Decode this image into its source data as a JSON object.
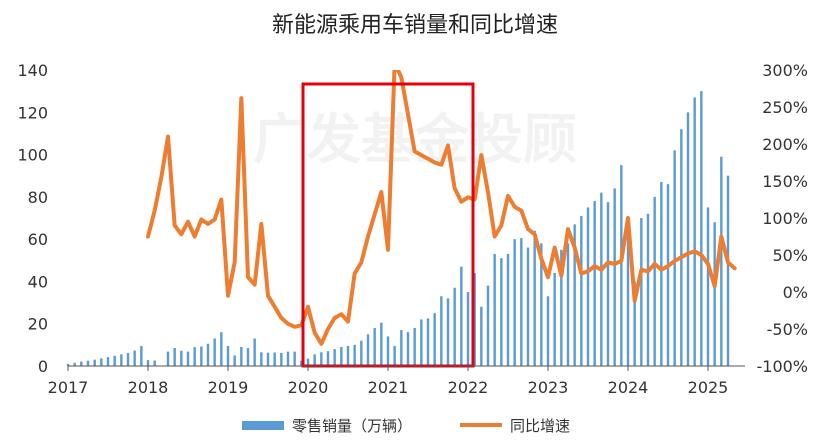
{
  "chart_data": {
    "type": "bar+line",
    "title": "新能源乘用车销量和同比增速",
    "watermark": "广发基金投顾",
    "x_axis": {
      "labels": [
        "2017",
        "2018",
        "2019",
        "2020",
        "2021",
        "2022",
        "2023",
        "2024",
        "2025"
      ]
    },
    "y_left": {
      "ticks": [
        "0",
        "20",
        "40",
        "60",
        "80",
        "100",
        "120",
        "140"
      ],
      "min": 0,
      "max": 140
    },
    "y_right": {
      "ticks": [
        "-100%",
        "-50%",
        "0%",
        "50%",
        "100%",
        "150%",
        "200%",
        "250%",
        "300%"
      ],
      "min": -100,
      "max": 300
    },
    "series": [
      {
        "name": "零售销量（万辆）",
        "type": "bar",
        "axis": "left",
        "color": "#5b9bd5",
        "start": "2017-01",
        "values": [
          1.0,
          1.5,
          2.1,
          2.5,
          3.0,
          3.6,
          4.2,
          4.8,
          5.5,
          6.1,
          7.3,
          9.5,
          2.8,
          2.6,
          null,
          6.8,
          8.5,
          7.2,
          6.8,
          8.9,
          9.2,
          10.5,
          13.0,
          16.0,
          9.5,
          5.0,
          9.0,
          8.5,
          13.0,
          6.5,
          6.3,
          6.4,
          6.2,
          6.8,
          6.8,
          2.5,
          3.5,
          5.5,
          6.5,
          7.0,
          8.0,
          9.0,
          9.5,
          10.0,
          12.0,
          15.0,
          18.0,
          20.5,
          14.0,
          9.5,
          17.0,
          16.0,
          18.0,
          22.0,
          22.5,
          25.0,
          33.0,
          32.0,
          37.0,
          47.0,
          35.0,
          44.0,
          28.0,
          38.0,
          53.0,
          51.0,
          53.0,
          60.0,
          60.5,
          56.0,
          64.0,
          58.0,
          33.0,
          44.0,
          55.0,
          58.0,
          67.0,
          71.0,
          75.0,
          78.0,
          82.0,
          77.5,
          84.0,
          95.0,
          66.0,
          40.0,
          70.0,
          72.0,
          80.0,
          87.0,
          86.0,
          102.0,
          112.0,
          120.0,
          127.0,
          130.0,
          75.0,
          68.0,
          99.0,
          90.0
        ]
      },
      {
        "name": "同比增速",
        "type": "line",
        "axis": "right",
        "color": "#ed7d31",
        "points": [
          [
            "2018-01",
            75
          ],
          [
            "2018-02",
            110
          ],
          [
            "2018-03",
            155
          ],
          [
            "2018-04",
            210
          ],
          [
            "2018-05",
            90
          ],
          [
            "2018-06",
            78
          ],
          [
            "2018-07",
            95
          ],
          [
            "2018-08",
            75
          ],
          [
            "2018-09",
            98
          ],
          [
            "2018-10",
            92
          ],
          [
            "2018-11",
            98
          ],
          [
            "2018-12",
            125
          ],
          [
            "2019-01",
            -5
          ],
          [
            "2019-02",
            40
          ],
          [
            "2019-03",
            262
          ],
          [
            "2019-04",
            20
          ],
          [
            "2019-05",
            10
          ],
          [
            "2019-06",
            92
          ],
          [
            "2019-07",
            -5
          ],
          [
            "2019-08",
            -20
          ],
          [
            "2019-09",
            -35
          ],
          [
            "2019-10",
            -43
          ],
          [
            "2019-11",
            -47
          ],
          [
            "2019-12",
            -45
          ],
          [
            "2020-01",
            -20
          ],
          [
            "2020-02",
            -55
          ],
          [
            "2020-03",
            -70
          ],
          [
            "2020-04",
            -50
          ],
          [
            "2020-05",
            -35
          ],
          [
            "2020-06",
            -30
          ],
          [
            "2020-07",
            -40
          ],
          [
            "2020-08",
            25
          ],
          [
            "2020-09",
            40
          ],
          [
            "2020-10",
            75
          ],
          [
            "2020-11",
            105
          ],
          [
            "2020-12",
            135
          ],
          [
            "2021-01",
            57
          ],
          [
            "2021-02",
            310
          ],
          [
            "2021-03",
            290
          ],
          [
            "2021-04",
            240
          ],
          [
            "2021-05",
            190
          ],
          [
            "2021-06",
            185
          ],
          [
            "2021-07",
            180
          ],
          [
            "2021-08",
            175
          ],
          [
            "2021-09",
            172
          ],
          [
            "2021-10",
            198
          ],
          [
            "2021-11",
            140
          ],
          [
            "2021-12",
            122
          ],
          [
            "2022-01",
            128
          ],
          [
            "2022-02",
            125
          ],
          [
            "2022-03",
            185
          ],
          [
            "2022-04",
            135
          ],
          [
            "2022-05",
            75
          ],
          [
            "2022-06",
            90
          ],
          [
            "2022-07",
            130
          ],
          [
            "2022-08",
            115
          ],
          [
            "2022-09",
            110
          ],
          [
            "2022-10",
            85
          ],
          [
            "2022-11",
            78
          ],
          [
            "2022-12",
            45
          ],
          [
            "2023-01",
            20
          ],
          [
            "2023-02",
            60
          ],
          [
            "2023-03",
            22
          ],
          [
            "2023-04",
            85
          ],
          [
            "2023-05",
            60
          ],
          [
            "2023-06",
            25
          ],
          [
            "2023-07",
            28
          ],
          [
            "2023-08",
            35
          ],
          [
            "2023-09",
            30
          ],
          [
            "2023-10",
            40
          ],
          [
            "2023-11",
            38
          ],
          [
            "2023-12",
            42
          ],
          [
            "2024-01",
            100
          ],
          [
            "2024-02",
            -12
          ],
          [
            "2024-03",
            30
          ],
          [
            "2024-04",
            28
          ],
          [
            "2024-05",
            38
          ],
          [
            "2024-06",
            30
          ],
          [
            "2024-07",
            35
          ],
          [
            "2024-08",
            42
          ],
          [
            "2024-09",
            47
          ],
          [
            "2024-10",
            52
          ],
          [
            "2024-11",
            55
          ],
          [
            "2024-12",
            50
          ],
          [
            "2025-01",
            38
          ],
          [
            "2025-02",
            8
          ],
          [
            "2025-03",
            75
          ],
          [
            "2025-04",
            40
          ],
          [
            "2025-05",
            32
          ]
        ]
      }
    ],
    "highlight_box": {
      "from": "2020-01",
      "to": "2022-01",
      "color": "#e3000f"
    },
    "legend": {
      "position": "bottom",
      "items": [
        "零售销量（万辆）",
        "同比增速"
      ]
    },
    "grid": false
  }
}
